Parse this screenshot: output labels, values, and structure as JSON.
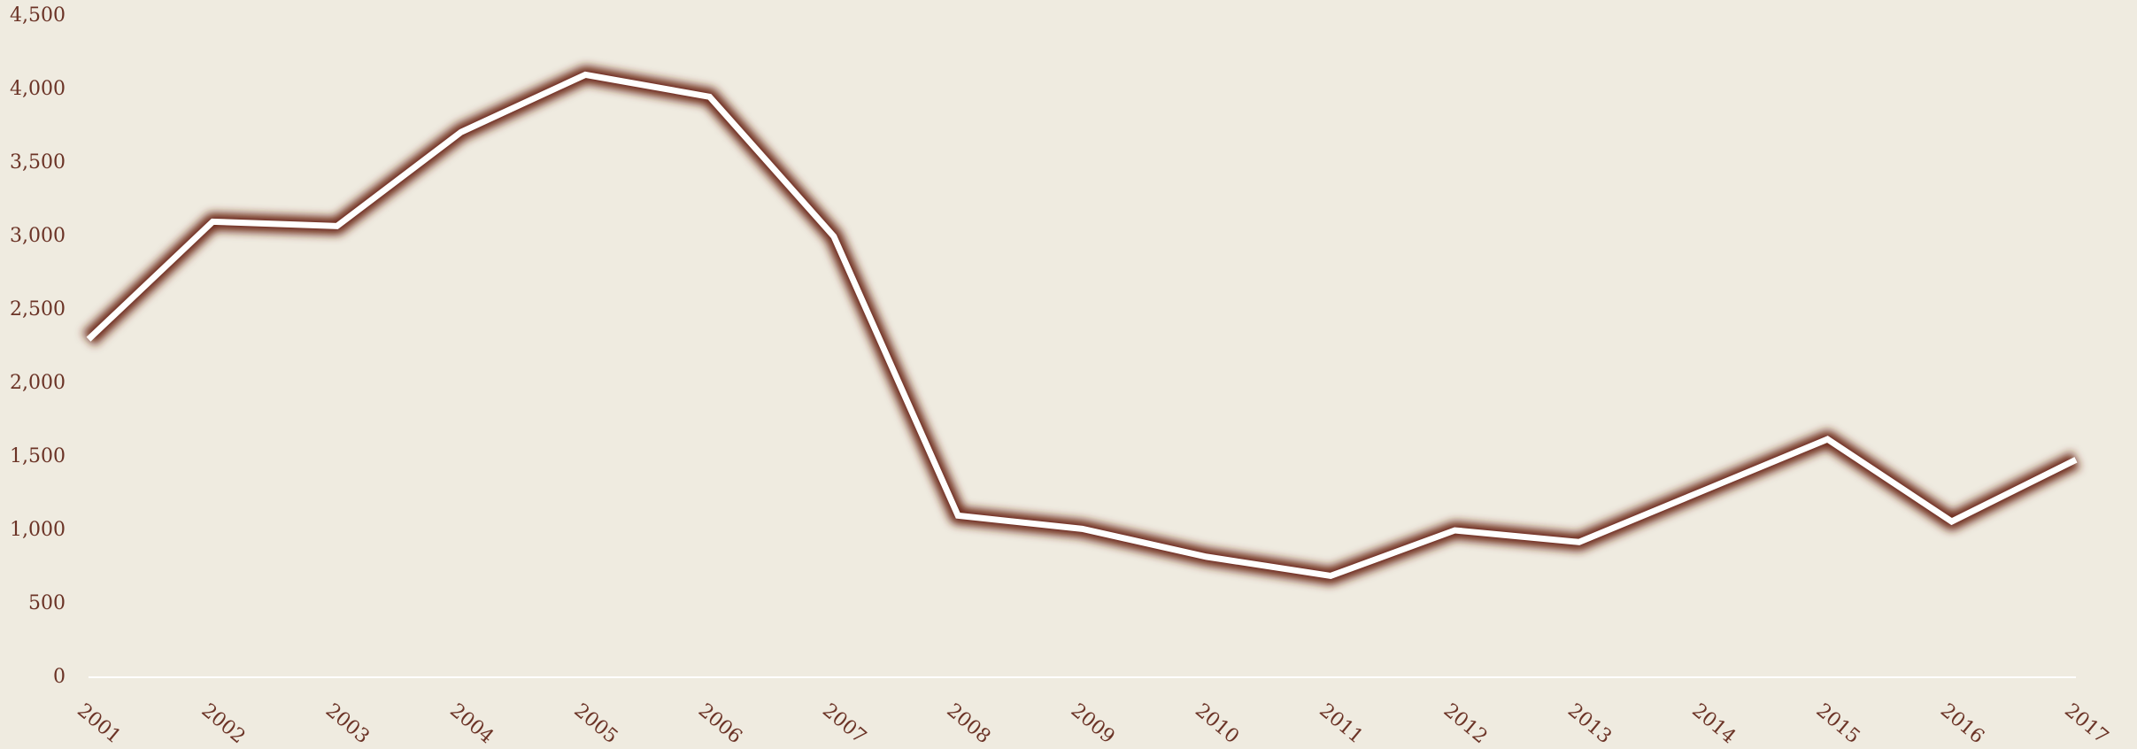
{
  "chart_data": {
    "type": "line",
    "x": [
      "2001",
      "2002",
      "2003",
      "2004",
      "2005",
      "2006",
      "2007",
      "2008",
      "2009",
      "2010",
      "2011",
      "2012",
      "2013",
      "2014",
      "2015",
      "2016",
      "2017"
    ],
    "series": [
      {
        "color": "#ffffff",
        "values": [
          2300,
          3100,
          3070,
          3710,
          4100,
          3950,
          3000,
          1100,
          1010,
          820,
          690,
          1000,
          920,
          1270,
          1620,
          1060,
          1480
        ]
      }
    ],
    "glow_color": "#6b2618",
    "ylim": [
      0,
      4500
    ],
    "yticks": [
      0,
      500,
      {
        "value": 1000,
        "label": "1,000"
      },
      {
        "value": 1500,
        "label": "1,500"
      },
      {
        "value": 2000,
        "label": "2,000"
      },
      {
        "value": 2500,
        "label": "2,500"
      },
      {
        "value": 3000,
        "label": "3,000"
      },
      {
        "value": 3500,
        "label": "3,500"
      },
      {
        "value": 4000,
        "label": "4,000"
      },
      {
        "value": 4500,
        "label": "4,500"
      }
    ]
  }
}
